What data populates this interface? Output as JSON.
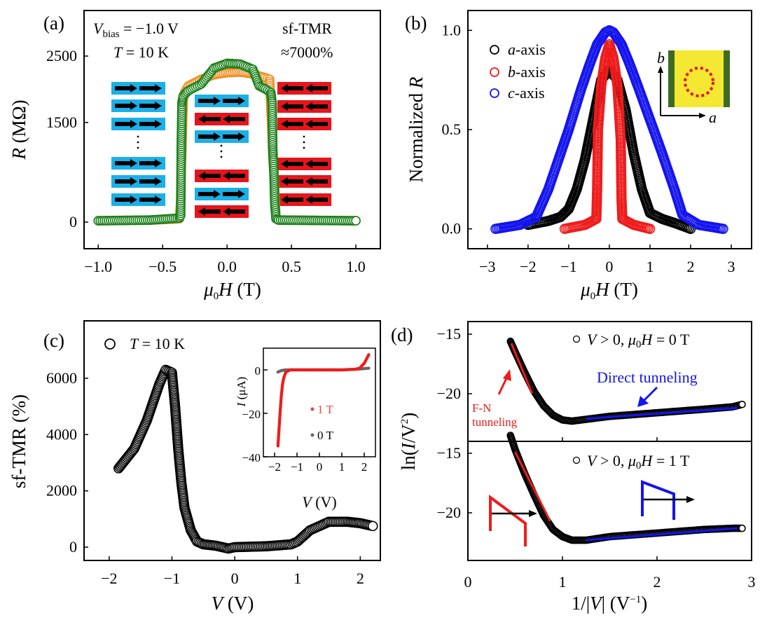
{
  "colors": {
    "green": "#1a7f1a",
    "orange": "#f08c1e",
    "spin_up": "#1ab0e8",
    "spin_down": "#e8141c",
    "red": "#ee1c1c",
    "blue": "#1414ee",
    "black": "#000000",
    "gray": "#666666",
    "inset_yellow": "#f4e832",
    "inset_green": "#3d6b22"
  },
  "chart_data": [
    {
      "panel_label": "(a)",
      "type": "scatter",
      "xlabel": {
        "mu": "μ",
        "sub": "0",
        "var": "H",
        "unit": " (T)"
      },
      "ylabel": {
        "var": "R",
        "unit": " (MΩ)"
      },
      "xlim": [
        -1.11,
        1.19
      ],
      "ylim": [
        -401,
        3186
      ],
      "xticks": {
        "values": [
          -1,
          -0.5,
          0,
          0.5,
          1
        ],
        "labels": [
          "−1.0",
          "−0.5",
          "0.0",
          "0.5",
          "1.0"
        ]
      },
      "yticks": {
        "values": [
          0,
          1500,
          2500
        ],
        "labels": [
          "0",
          "1500",
          "2500"
        ]
      },
      "annotations": {
        "v": "V",
        "bias": "bias",
        "vbias_value": " = −1.0 V",
        "t": "T",
        "t_value": " = 10 K",
        "tmr_label": "sf-TMR",
        "tmr_value": "≈7000%"
      },
      "spin_configs": [
        [
          "right",
          "right",
          "right",
          "dots",
          "right",
          "right",
          "right"
        ],
        [
          "right",
          "left",
          "right",
          "dots",
          "left",
          "right",
          "left"
        ],
        [
          "left",
          "left",
          "left",
          "dots",
          "left",
          "left",
          "left"
        ]
      ],
      "series": [
        {
          "color": "orange",
          "x": [
            -1.0,
            -0.6,
            -0.37,
            -0.36,
            -0.355,
            -0.35,
            -0.345,
            -0.34,
            -0.33,
            -0.3,
            -0.2,
            -0.1,
            0.0,
            0.1,
            0.2,
            0.3,
            0.33,
            0.35,
            0.355,
            0.36,
            0.365,
            0.37,
            0.375,
            0.38,
            0.4,
            0.7,
            1.0
          ],
          "y": [
            20,
            30,
            50,
            300,
            850,
            1100,
            1500,
            1850,
            1950,
            2050,
            2150,
            2220,
            2250,
            2260,
            2230,
            2170,
            2150,
            1300,
            1000,
            850,
            700,
            500,
            250,
            50,
            30,
            25,
            20
          ]
        },
        {
          "color": "green",
          "x": [
            -1.0,
            -0.6,
            -0.37,
            -0.36,
            -0.355,
            -0.35,
            -0.34,
            -0.3,
            -0.2,
            -0.1,
            0.0,
            0.1,
            0.2,
            0.25,
            0.3,
            0.34,
            0.35,
            0.355,
            0.36,
            0.365,
            0.37,
            0.38,
            0.4,
            0.7,
            1.0
          ],
          "y": [
            20,
            30,
            60,
            100,
            1200,
            1800,
            1900,
            1980,
            2080,
            2320,
            2390,
            2380,
            2300,
            2050,
            2000,
            1950,
            1790,
            1100,
            900,
            680,
            290,
            50,
            30,
            25,
            20
          ]
        }
      ]
    },
    {
      "panel_label": "(b)",
      "type": "scatter",
      "xlabel": {
        "mu": "μ",
        "sub": "0",
        "var": "H",
        "unit": " (T)"
      },
      "ylabel": {
        "pre": "Normalized ",
        "var": "R"
      },
      "xlim": [
        -3.48,
        3.5
      ],
      "ylim": [
        -0.1,
        1.1
      ],
      "xticks": {
        "values": [
          -3,
          -2,
          -1,
          0,
          1,
          2,
          3
        ],
        "labels": [
          "−3",
          "−2",
          "−1",
          "0",
          "1",
          "2",
          "3"
        ]
      },
      "yticks": {
        "values": [
          0,
          0.5,
          1
        ],
        "labels": [
          "0.0",
          "0.5",
          "1.0"
        ]
      },
      "legend": [
        {
          "var": "a",
          "text": "-axis",
          "color": "black"
        },
        {
          "var": "b",
          "text": "-axis",
          "color": "red"
        },
        {
          "var": "c",
          "text": "-axis",
          "color": "blue"
        }
      ],
      "inset": {
        "axis_b": "b",
        "axis_a": "a"
      },
      "series": [
        {
          "name": "a-axis",
          "color": "black",
          "x": [
            -2.0,
            -1.5,
            -1.2,
            -1.0,
            -0.8,
            -0.6,
            -0.4,
            -0.2,
            0,
            0.2,
            0.4,
            0.6,
            0.8,
            1.0,
            1.3,
            1.6,
            2.0
          ],
          "y": [
            0.02,
            0.04,
            0.06,
            0.1,
            0.2,
            0.35,
            0.55,
            0.75,
            0.8,
            0.75,
            0.6,
            0.38,
            0.2,
            0.08,
            0.05,
            0.03,
            0.0
          ]
        },
        {
          "name": "b-axis",
          "color": "red",
          "x": [
            -1.1,
            -0.6,
            -0.32,
            -0.3,
            -0.28,
            -0.2,
            -0.1,
            0,
            0.1,
            0.2,
            0.28,
            0.3,
            0.32,
            0.6,
            1.0
          ],
          "y": [
            0.0,
            0.02,
            0.05,
            0.2,
            0.5,
            0.72,
            0.86,
            0.93,
            0.86,
            0.72,
            0.45,
            0.15,
            0.05,
            0.02,
            0.0
          ]
        },
        {
          "name": "c-axis",
          "color": "blue",
          "x": [
            -2.8,
            -2.2,
            -1.8,
            -1.5,
            -1.2,
            -1.0,
            -0.7,
            -0.5,
            -0.3,
            -0.1,
            0,
            0.1,
            0.3,
            0.5,
            0.7,
            1.0,
            1.3,
            1.6,
            1.8,
            2.2,
            2.8
          ],
          "y": [
            0.0,
            0.02,
            0.06,
            0.2,
            0.38,
            0.5,
            0.7,
            0.82,
            0.93,
            0.99,
            1.0,
            0.99,
            0.93,
            0.83,
            0.72,
            0.55,
            0.38,
            0.2,
            0.07,
            0.02,
            0.0
          ]
        }
      ]
    },
    {
      "panel_label": "(c)",
      "type": "scatter",
      "xlabel": {
        "var": "V",
        "unit": " (V)"
      },
      "ylabel": {
        "text": "sf-TMR (%)"
      },
      "xlim": [
        -2.4,
        2.32
      ],
      "ylim": [
        -473,
        8040
      ],
      "xticks": {
        "values": [
          -2,
          -1,
          0,
          1,
          2
        ],
        "labels": [
          "−2",
          "−1",
          "0",
          "1",
          "2"
        ]
      },
      "yticks": {
        "values": [
          0,
          2000,
          4000,
          6000
        ],
        "labels": [
          "0",
          "2000",
          "4000",
          "6000"
        ]
      },
      "legend": {
        "var": "T",
        "text": " = 10 K"
      },
      "series": [
        {
          "color": "black",
          "x": [
            -1.85,
            -1.6,
            -1.4,
            -1.2,
            -1.1,
            -1.0,
            -0.95,
            -0.9,
            -0.85,
            -0.8,
            -0.7,
            -0.6,
            -0.5,
            -0.3,
            -0.1,
            0,
            0.5,
            0.9,
            1.0,
            1.2,
            1.5,
            1.8,
            2.0,
            2.2
          ],
          "y": [
            2800,
            3500,
            4500,
            5800,
            6300,
            6200,
            5000,
            3500,
            2300,
            1400,
            600,
            200,
            100,
            50,
            -50,
            0,
            30,
            100,
            200,
            600,
            900,
            900,
            850,
            750
          ]
        }
      ],
      "inset": {
        "xlabel": {
          "var": "V",
          "unit": " (V)"
        },
        "ylabel": {
          "var": "I",
          "unit": " (μA)"
        },
        "xlim": [
          -2.5,
          2.5
        ],
        "ylim": [
          -40,
          10
        ],
        "xticks": {
          "values": [
            -2,
            -1,
            0,
            1,
            2
          ],
          "labels": [
            "−2",
            "−1",
            "0",
            "1",
            "2"
          ]
        },
        "yticks": {
          "values": [
            -40,
            -20,
            0
          ],
          "labels": [
            "−40",
            "−20",
            "0"
          ]
        },
        "series": [
          {
            "name": "0 T",
            "color": "gray",
            "x": [
              -1.85,
              -1.7,
              -1.5,
              -1.0,
              0,
              1.0,
              1.8,
              2.2
            ],
            "y": [
              -1,
              -0.3,
              0,
              0,
              0,
              0,
              0.4,
              0.8
            ]
          },
          {
            "name": "1 T",
            "color": "red",
            "x": [
              -1.85,
              -1.8,
              -1.75,
              -1.7,
              -1.65,
              -1.6,
              -1.5,
              -1.3,
              -1.0,
              0,
              1.0,
              1.6,
              1.8,
              1.9,
              2.0,
              2.1,
              2.2
            ],
            "y": [
              -35,
              -27,
              -19,
              -12,
              -7,
              -4,
              -1,
              0,
              0,
              0,
              0,
              0.3,
              0.8,
              2,
              3,
              5,
              7
            ]
          }
        ]
      }
    },
    {
      "panel_label": "(d)",
      "type": "scatter",
      "xlabel": {
        "pre": "1/|",
        "var": "V",
        "post": "| (V",
        "sup": "−1",
        "close": ")"
      },
      "ylabel": {
        "pre": "ln(",
        "var": "I",
        "mid": "/V",
        "sup": "2",
        "close": ")"
      },
      "xlim": [
        0,
        3
      ],
      "xticks": {
        "values": [
          0,
          1,
          2,
          3
        ],
        "labels": [
          "0",
          "1",
          "2",
          "3"
        ]
      },
      "subplots": [
        {
          "ylim": [
            -24,
            -13.94
          ],
          "yticks": {
            "values": [
              -20,
              -15
            ],
            "labels": [
              "−20",
              "−15"
            ]
          },
          "legend": {
            "var": "V",
            "text": " > 0,  ",
            "mu": "μ",
            "sub": "0",
            "h": "H",
            "value": " = 0 T"
          },
          "data": {
            "x": [
              0.45,
              0.5,
              0.6,
              0.7,
              0.8,
              0.9,
              1.0,
              1.1,
              1.2,
              1.5,
              2.0,
              2.5,
              2.8,
              2.9
            ],
            "y": [
              -15.6,
              -16.5,
              -18.2,
              -19.8,
              -21.0,
              -21.8,
              -22.2,
              -22.3,
              -22.2,
              -21.9,
              -21.6,
              -21.3,
              -21.1,
              -20.9
            ]
          },
          "fn_fit": {
            "x": [
              0.46,
              0.68
            ],
            "y": [
              -15.8,
              -20.0
            ]
          },
          "direct_fit": {
            "x": [
              1.25,
              2.85
            ],
            "y": [
              -22.1,
              -21.2
            ]
          }
        },
        {
          "ylim": [
            -24,
            -14
          ],
          "yticks": {
            "values": [
              -20,
              -15
            ],
            "labels": [
              "−20",
              "−15"
            ]
          },
          "legend": {
            "var": "V",
            "text": " > 0, ",
            "mu": "μ",
            "sub": "0",
            "h": "H",
            "value": " = 1 T"
          },
          "data": {
            "x": [
              0.45,
              0.5,
              0.6,
              0.7,
              0.8,
              0.9,
              1.0,
              1.1,
              1.25,
              1.5,
              2.0,
              2.5,
              2.8,
              2.9
            ],
            "y": [
              -13.5,
              -14.7,
              -16.7,
              -18.5,
              -20.2,
              -21.4,
              -22.0,
              -22.3,
              -22.3,
              -22.0,
              -21.7,
              -21.4,
              -21.3,
              -21.3
            ]
          },
          "fn_fit": {
            "x": [
              0.5,
              0.87
            ],
            "y": [
              -14.9,
              -20.7
            ]
          },
          "direct_fit": {
            "x": [
              1.25,
              2.85
            ],
            "y": [
              -22.3,
              -21.3
            ]
          }
        }
      ],
      "annotations": {
        "fn_line1": "F-N",
        "fn_line2": "tunneling",
        "direct": "Direct tunneling"
      }
    }
  ]
}
